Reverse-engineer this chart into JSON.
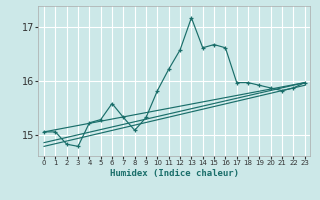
{
  "xlabel": "Humidex (Indice chaleur)",
  "background_color": "#cce8e8",
  "grid_color": "#ffffff",
  "line_color": "#1a6e6a",
  "xlim": [
    -0.5,
    23.5
  ],
  "ylim": [
    14.6,
    17.4
  ],
  "yticks": [
    15,
    16,
    17
  ],
  "xticks": [
    0,
    1,
    2,
    3,
    4,
    5,
    6,
    7,
    8,
    9,
    10,
    11,
    12,
    13,
    14,
    15,
    16,
    17,
    18,
    19,
    20,
    21,
    22,
    23
  ],
  "series1_x": [
    0,
    1,
    2,
    3,
    4,
    5,
    6,
    7,
    8,
    9,
    10,
    11,
    12,
    13,
    14,
    15,
    16,
    17,
    18,
    19,
    20,
    21,
    22,
    23
  ],
  "series1_y": [
    15.05,
    15.05,
    14.82,
    14.78,
    15.22,
    15.28,
    15.58,
    15.32,
    15.08,
    15.32,
    15.82,
    16.22,
    16.58,
    17.18,
    16.62,
    16.68,
    16.62,
    15.97,
    15.97,
    15.92,
    15.87,
    15.82,
    15.87,
    15.97
  ],
  "series2_x": [
    0,
    23
  ],
  "series2_y": [
    14.78,
    15.92
  ],
  "series3_x": [
    0,
    23
  ],
  "series3_y": [
    14.85,
    15.97
  ],
  "series4_x": [
    0,
    23
  ],
  "series4_y": [
    15.05,
    15.97
  ]
}
